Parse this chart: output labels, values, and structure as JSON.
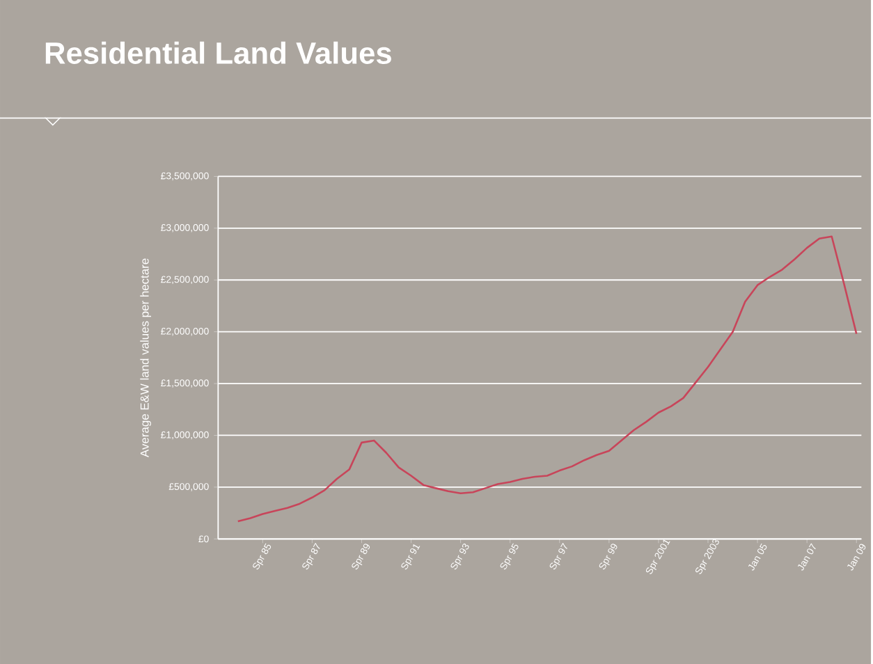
{
  "chart_data": {
    "type": "line",
    "title": "Residential Land Values",
    "ylabel": "Average E&W land values per hectare",
    "categories": [
      null,
      null,
      "Spr 85",
      null,
      null,
      null,
      "Spr 87",
      null,
      null,
      null,
      "Spr 89",
      null,
      null,
      null,
      "Spr 91",
      null,
      null,
      null,
      "Spr 93",
      null,
      null,
      null,
      "Spr 95",
      null,
      null,
      null,
      "Spr 97",
      null,
      null,
      null,
      "Spr 99",
      null,
      null,
      null,
      "Spr 2001",
      null,
      null,
      null,
      "Spr 2003",
      null,
      null,
      null,
      "Jan 05",
      null,
      null,
      null,
      "Jan 07",
      null,
      null,
      null,
      "Jan 09"
    ],
    "values": [
      170000,
      200000,
      240000,
      270000,
      300000,
      340000,
      400000,
      470000,
      580000,
      670000,
      930000,
      950000,
      830000,
      690000,
      610000,
      520000,
      490000,
      460000,
      440000,
      450000,
      490000,
      530000,
      550000,
      580000,
      600000,
      610000,
      660000,
      700000,
      760000,
      810000,
      850000,
      950000,
      1050000,
      1130000,
      1220000,
      1280000,
      1360000,
      1510000,
      1660000,
      1830000,
      2000000,
      2290000,
      2450000,
      2530000,
      2600000,
      2700000,
      2810000,
      2900000,
      2920000,
      2460000,
      1980000
    ],
    "color": "#c8455a",
    "ylim": [
      0,
      3500000
    ],
    "yticks": [
      {
        "value": 0,
        "label": "£0"
      },
      {
        "value": 500000,
        "label": "£500,000"
      },
      {
        "value": 1000000,
        "label": "£1,000,000"
      },
      {
        "value": 1500000,
        "label": "£1,500,000"
      },
      {
        "value": 2000000,
        "label": "£2,000,000"
      },
      {
        "value": 2500000,
        "label": "£2,500,000"
      },
      {
        "value": 3000000,
        "label": "£3,000,000"
      },
      {
        "value": 3500000,
        "label": "£3,500,000"
      }
    ],
    "grid": "y"
  }
}
